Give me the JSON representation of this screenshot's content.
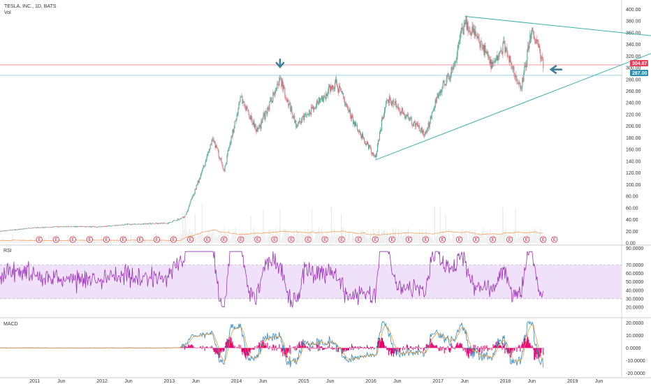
{
  "header": {
    "symbol_line": "TESLA, INC., 1D, BATS",
    "volume_label": "Vol"
  },
  "badges": {
    "last_price": "304.87",
    "support_level": "287.00"
  },
  "panes": {
    "rsi_label": "RSI",
    "macd_label": "MACD"
  },
  "colors": {
    "up": "#4aa38f",
    "down": "#e0707a",
    "trendline": "#3fb1a8",
    "arrow": "#3d7f99",
    "rsi": "#9b33b8",
    "rsi_band": "#f0e1fb",
    "macd": "#2f8cc6",
    "signal": "#e8973a",
    "hist": "#e5006e",
    "price_badge": "#e8405a",
    "support_badge": "#2c8fb0",
    "earnings": "#d0021b",
    "volume_ma": "#f5a05c"
  },
  "earnings_marker_label": "E",
  "chart_data": [
    {
      "type": "candlestick",
      "pane": "price",
      "title": "TESLA, INC., 1D, BATS",
      "ylim": [
        0,
        410
      ],
      "y_ticks": [
        "400.00",
        "380.00",
        "360.00",
        "340.00",
        "320.00",
        "300.00",
        "280.00",
        "260.00",
        "240.00",
        "220.00",
        "200.00",
        "180.00",
        "160.00",
        "140.00",
        "120.00",
        "100.00",
        "80.00",
        "60.00",
        "40.00",
        "20.00",
        "0.00"
      ],
      "x_ticks": [
        "2011",
        "Jun",
        "2012",
        "Jun",
        "2013",
        "Jun",
        "2014",
        "Jun",
        "2015",
        "Jun",
        "2016",
        "Jun",
        "2017",
        "Jun",
        "2018",
        "Jun",
        "2019",
        "Jun"
      ],
      "xlim": [
        "2010-07",
        "2019-10"
      ],
      "price_path": [
        [
          "2010-07",
          20
        ],
        [
          "2011-01",
          26
        ],
        [
          "2011-06",
          28
        ],
        [
          "2012-01",
          28
        ],
        [
          "2012-06",
          32
        ],
        [
          "2013-01",
          34
        ],
        [
          "2013-04",
          45
        ],
        [
          "2013-07",
          120
        ],
        [
          "2013-09",
          180
        ],
        [
          "2013-11",
          125
        ],
        [
          "2014-02",
          250
        ],
        [
          "2014-05",
          190
        ],
        [
          "2014-09",
          280
        ],
        [
          "2014-12",
          200
        ],
        [
          "2015-07",
          275
        ],
        [
          "2015-10",
          210
        ],
        [
          "2016-02",
          145
        ],
        [
          "2016-04",
          250
        ],
        [
          "2016-11",
          185
        ],
        [
          "2017-01",
          250
        ],
        [
          "2017-04",
          300
        ],
        [
          "2017-06",
          380
        ],
        [
          "2017-09",
          340
        ],
        [
          "2017-11",
          300
        ],
        [
          "2018-01",
          340
        ],
        [
          "2018-04",
          260
        ],
        [
          "2018-06",
          370
        ],
        [
          "2018-08",
          304.87
        ]
      ],
      "horizontal_lines": [
        304.87,
        287.0
      ],
      "trendlines": [
        {
          "from": [
            "2016-02",
            142
          ],
          "to": [
            "2019-10",
            316
          ]
        },
        {
          "from": [
            "2017-06",
            388
          ],
          "to": [
            "2019-10",
            356
          ]
        }
      ],
      "annotations": [
        {
          "type": "arrow-down",
          "x": "2014-09",
          "y": 300
        },
        {
          "type": "arrow-left",
          "x": "2018-10",
          "y": 297
        }
      ],
      "earnings_dates": [
        "2013-02",
        "2013-05",
        "2013-08",
        "2013-11",
        "2014-02",
        "2014-05",
        "2014-08",
        "2014-11",
        "2015-02",
        "2015-05",
        "2015-08",
        "2015-11",
        "2016-02",
        "2016-05",
        "2016-08",
        "2016-11",
        "2017-02",
        "2017-05",
        "2017-08",
        "2017-11",
        "2018-02",
        "2018-05",
        "2018-08",
        "2018-10",
        "2011-02",
        "2011-05",
        "2011-08",
        "2011-11",
        "2012-02",
        "2012-05",
        "2012-08",
        "2012-11"
      ],
      "volume_label": "Vol"
    },
    {
      "type": "line",
      "pane": "rsi",
      "title": "RSI",
      "ylim": [
        10,
        92
      ],
      "y_ticks": [
        "90.0000",
        "70.0000",
        "60.0000",
        "50.0000",
        "40.0000",
        "30.0000",
        "20.0000"
      ],
      "bands": [
        30,
        70
      ]
    },
    {
      "type": "line",
      "pane": "macd",
      "title": "MACD",
      "ylim": [
        -22,
        23
      ],
      "y_ticks": [
        "20.0000",
        "10.0000",
        "0.0000",
        "-10.0000",
        "-20.0000"
      ],
      "series": [
        {
          "name": ""
        },
        {
          "name": ""
        }
      ]
    }
  ]
}
